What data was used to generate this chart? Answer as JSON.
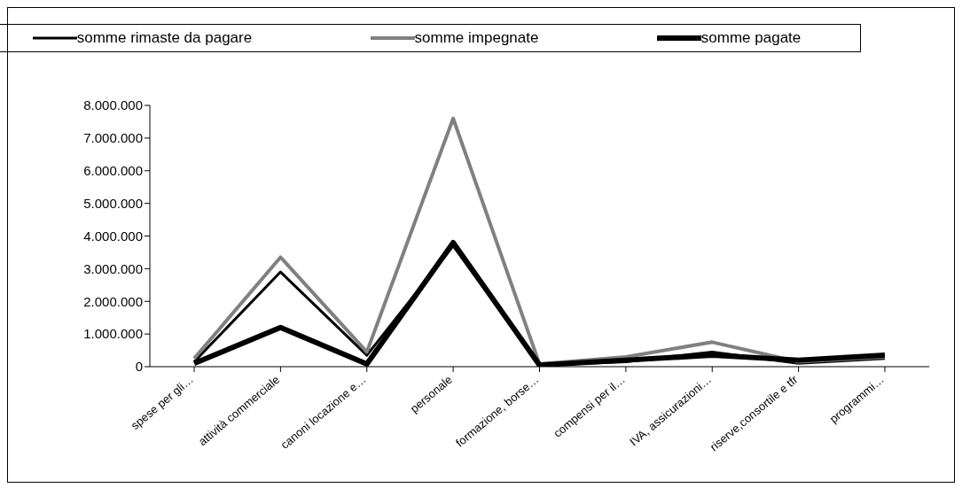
{
  "chart_data": {
    "type": "line",
    "categories": [
      "spese per gli…",
      "attività commerciale",
      "canoni locazione e…",
      "personale",
      "formazione, borse…",
      "compensi per il…",
      "IVA, assicurazioni…",
      "riserve,consortile e tfr",
      "programmi…"
    ],
    "series": [
      {
        "name": "somme rimaste da pagare",
        "color": "#000000",
        "values": [
          150000,
          2900000,
          350000,
          3700000,
          50000,
          150000,
          450000,
          100000,
          250000
        ]
      },
      {
        "name": "somme impegnate",
        "color": "#808080",
        "values": [
          250000,
          3350000,
          450000,
          7600000,
          80000,
          300000,
          750000,
          150000,
          300000
        ]
      },
      {
        "name": "somme pagate",
        "color": "#000000",
        "values": [
          100000,
          1200000,
          80000,
          3800000,
          50000,
          200000,
          350000,
          200000,
          350000
        ]
      }
    ],
    "ylim": [
      0,
      8000000
    ],
    "yticks": [
      {
        "value": 0,
        "label": "0"
      },
      {
        "value": 1000000,
        "label": "1.000.000"
      },
      {
        "value": 2000000,
        "label": "2.000.000"
      },
      {
        "value": 3000000,
        "label": "3.000.000"
      },
      {
        "value": 4000000,
        "label": "4.000.000"
      },
      {
        "value": 5000000,
        "label": "5.000.000"
      },
      {
        "value": 6000000,
        "label": "6.000.000"
      },
      {
        "value": 7000000,
        "label": "7.000.000"
      },
      {
        "value": 8000000,
        "label": "8.000.000"
      }
    ],
    "grid": false,
    "legend": "top",
    "marker": "none",
    "line_style": "solid"
  }
}
